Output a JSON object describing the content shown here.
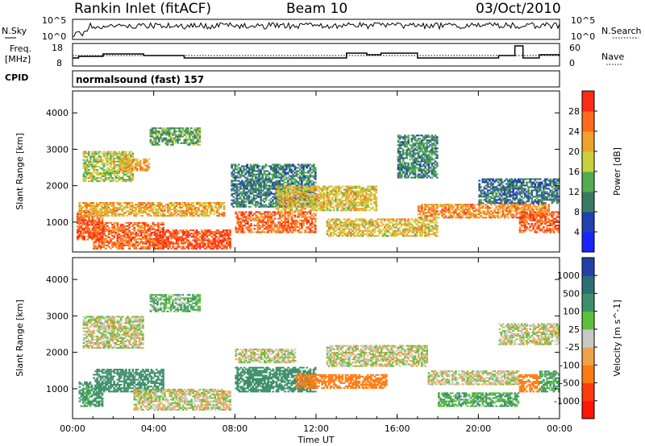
{
  "header": {
    "station": "Rankin Inlet (fitACF)",
    "beam": "Beam 10",
    "date": "03/Oct/2010"
  },
  "noise_panel": {
    "left_label": "N.Sky",
    "left_ticks": [
      "10^5",
      "10^0"
    ],
    "right_label": "N.Search",
    "right_ticks": [
      "10^5",
      "10^0"
    ]
  },
  "freq_panel": {
    "left_label_1": "Freq.",
    "left_label_2": "[MHz]",
    "left_ticks": [
      "18",
      "8"
    ],
    "right_label": "Nave",
    "right_ticks": [
      "60",
      "0"
    ]
  },
  "cpid": {
    "label": "CPID",
    "value": "normalsound (fast) 157"
  },
  "chart_data": [
    {
      "type": "heatmap",
      "name": "power",
      "ylabel": "Slant Range [km]",
      "yticks": [
        "1000",
        "2000",
        "3000",
        "4000"
      ],
      "ylim": [
        180,
        4600
      ],
      "xlim": [
        0,
        24
      ],
      "colorbar": {
        "label": "Power [dB]",
        "ticks": [
          "4",
          "8",
          "12",
          "16",
          "20",
          "24",
          "28"
        ],
        "colors": [
          "#1a24ff",
          "#2340b3",
          "#3a7a62",
          "#52ad52",
          "#c8d23c",
          "#f0a02c",
          "#ff6a1c",
          "#ff2a14"
        ]
      },
      "regions": [
        {
          "t0": 0.2,
          "t1": 1.5,
          "r0": 500,
          "r1": 1300,
          "v": 27
        },
        {
          "t0": 1.0,
          "t1": 4.5,
          "r0": 250,
          "r1": 1000,
          "v": 26
        },
        {
          "t0": 4.0,
          "t1": 7.8,
          "r0": 250,
          "r1": 800,
          "v": 28
        },
        {
          "t0": 0.3,
          "t1": 7.5,
          "r0": 1150,
          "r1": 1550,
          "v": 22
        },
        {
          "t0": 0.5,
          "t1": 3.0,
          "r0": 2100,
          "r1": 2950,
          "v": 17
        },
        {
          "t0": 2.3,
          "t1": 3.8,
          "r0": 2400,
          "r1": 2750,
          "v": 22
        },
        {
          "t0": 3.8,
          "t1": 6.3,
          "r0": 3100,
          "r1": 3600,
          "v": 13
        },
        {
          "t0": 8.0,
          "t1": 12.0,
          "r0": 700,
          "r1": 1300,
          "v": 26
        },
        {
          "t0": 7.8,
          "t1": 12.0,
          "r0": 1400,
          "r1": 2600,
          "v": 10
        },
        {
          "t0": 10.0,
          "t1": 15.0,
          "r0": 1300,
          "r1": 2000,
          "v": 20
        },
        {
          "t0": 12.5,
          "t1": 18.0,
          "r0": 600,
          "r1": 1100,
          "v": 20
        },
        {
          "t0": 16.0,
          "t1": 18.0,
          "r0": 2200,
          "r1": 3400,
          "v": 11
        },
        {
          "t0": 17.0,
          "t1": 23.5,
          "r0": 1100,
          "r1": 1500,
          "v": 24
        },
        {
          "t0": 20.0,
          "t1": 24.0,
          "r0": 1500,
          "r1": 2200,
          "v": 9
        },
        {
          "t0": 22.0,
          "t1": 24.0,
          "r0": 700,
          "r1": 1300,
          "v": 27
        }
      ]
    },
    {
      "type": "heatmap",
      "name": "velocity",
      "ylabel": "Slant Range [km]",
      "yticks": [
        "1000",
        "2000",
        "3000",
        "4000"
      ],
      "ylim": [
        180,
        4600
      ],
      "xlim": [
        0,
        24
      ],
      "colorbar": {
        "label": "Velocity [m s^-1]",
        "ticks": [
          "1000",
          "500",
          "100",
          "25",
          "-25",
          "-100",
          "-500",
          "-1000"
        ],
        "colors": [
          "#2440a8",
          "#2a6f73",
          "#3d8f6b",
          "#5cc03c",
          "#c8c8c4",
          "#f0a24a",
          "#ff7a10",
          "#ff3a0c",
          "#ff1408"
        ]
      },
      "regions": [
        {
          "t0": 0.3,
          "t1": 1.5,
          "r0": 500,
          "r1": 1200,
          "v": 150
        },
        {
          "t0": 1.0,
          "t1": 4.5,
          "r0": 900,
          "r1": 1550,
          "v": 300
        },
        {
          "t0": 0.5,
          "t1": 3.5,
          "r0": 2100,
          "r1": 3000,
          "v": 0
        },
        {
          "t0": 3.8,
          "t1": 6.3,
          "r0": 3100,
          "r1": 3600,
          "v": 80
        },
        {
          "t0": 3.0,
          "t1": 7.8,
          "r0": 400,
          "r1": 1000,
          "v": -10
        },
        {
          "t0": 8.0,
          "t1": 12.0,
          "r0": 900,
          "r1": 1600,
          "v": 300
        },
        {
          "t0": 8.0,
          "t1": 11.0,
          "r0": 1700,
          "r1": 2100,
          "v": 0
        },
        {
          "t0": 11.0,
          "t1": 15.5,
          "r0": 1000,
          "r1": 1400,
          "v": -200
        },
        {
          "t0": 12.5,
          "t1": 17.5,
          "r0": 1600,
          "r1": 2200,
          "v": 0
        },
        {
          "t0": 17.5,
          "t1": 22.0,
          "r0": 1100,
          "r1": 1500,
          "v": 0
        },
        {
          "t0": 18.0,
          "t1": 22.0,
          "r0": 500,
          "r1": 900,
          "v": 100
        },
        {
          "t0": 22.0,
          "t1": 23.0,
          "r0": 900,
          "r1": 1400,
          "v": -300
        },
        {
          "t0": 23.0,
          "t1": 24.0,
          "r0": 900,
          "r1": 1500,
          "v": 120
        },
        {
          "t0": 21.0,
          "t1": 24.0,
          "r0": 2200,
          "r1": 2800,
          "v": 0
        }
      ]
    }
  ],
  "x_axis": {
    "ticks": [
      "00:00",
      "04:00",
      "08:00",
      "12:00",
      "16:00",
      "20:00",
      "00:00"
    ],
    "label": "Time UT"
  }
}
